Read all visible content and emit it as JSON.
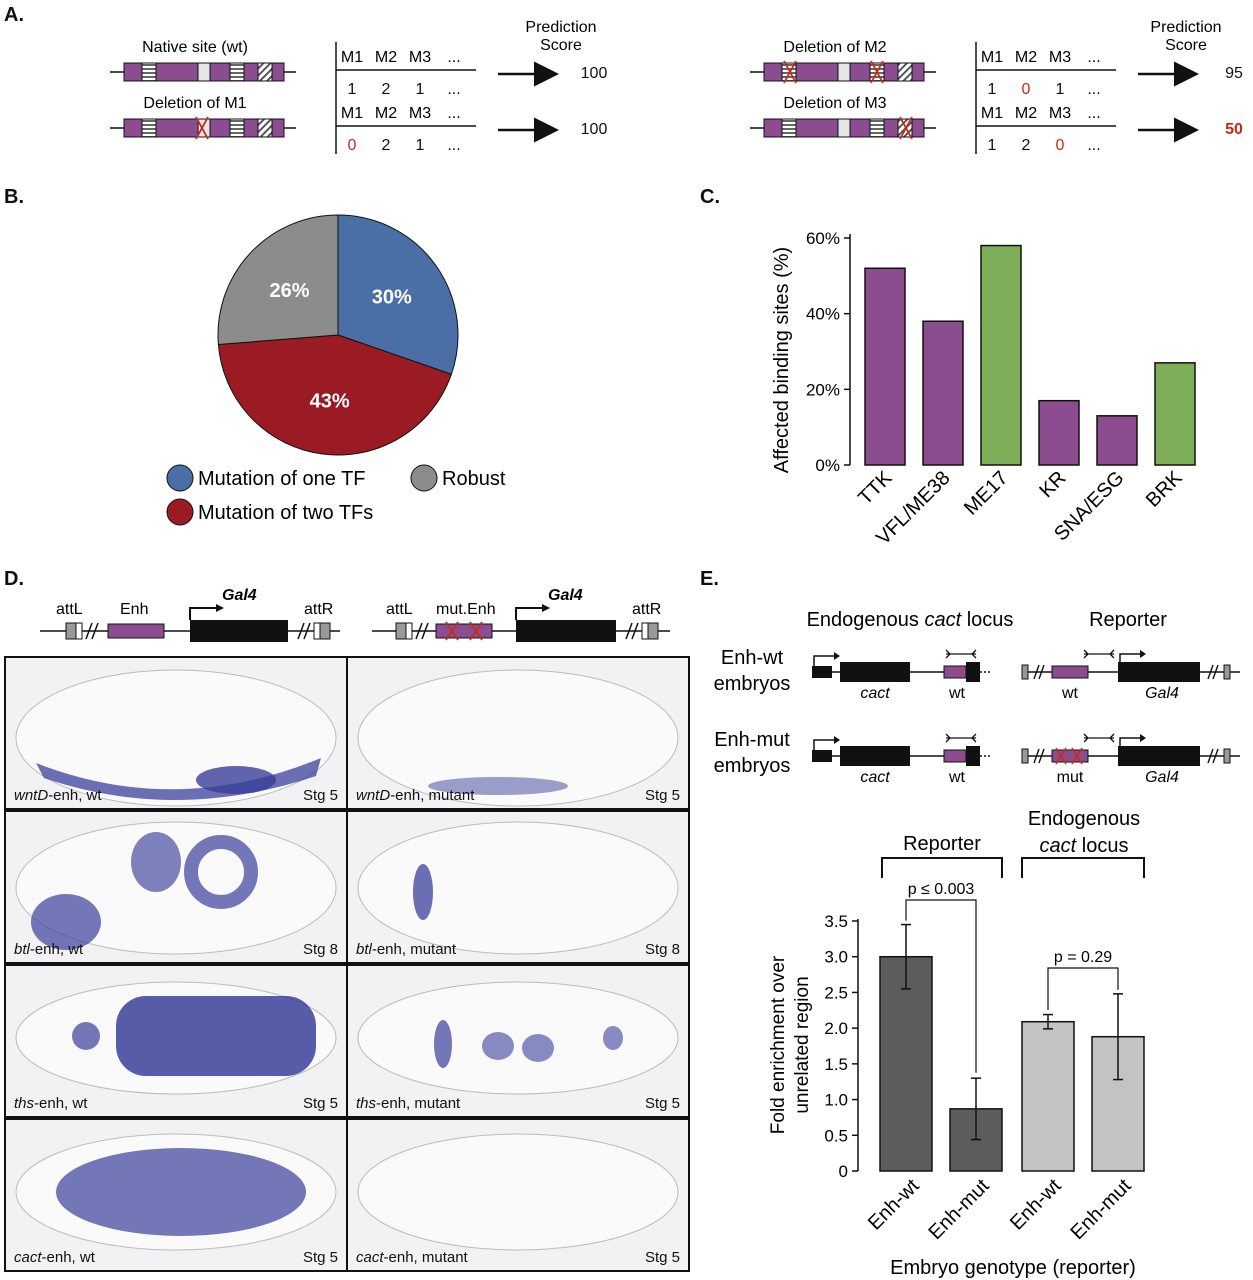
{
  "colors": {
    "purple": "#8b4d8f",
    "green": "#7fae59",
    "blue": "#4a6ea6",
    "red": "#9a1b24",
    "gray": "#8c8c8c",
    "dark_gray": "#5c5c5c",
    "light_gray": "#c3c3c3",
    "red_text": "#c62a16",
    "embryo_stain": "#3a3f9a"
  },
  "panelA": {
    "letter": "A.",
    "score_header_line1": "Prediction",
    "score_header_line2": "Score",
    "table_headers": [
      "M1",
      "M2",
      "M3",
      "..."
    ],
    "rows": [
      {
        "label": "Native site (wt)",
        "values": [
          "1",
          "2",
          "1",
          "..."
        ],
        "score": "100"
      },
      {
        "label": "Deletion of M1",
        "values": [
          "0",
          "2",
          "1",
          "..."
        ],
        "score": "100"
      },
      {
        "label": "Deletion of M2",
        "values": [
          "1",
          "0",
          "1",
          "..."
        ],
        "score": "95"
      },
      {
        "label": "Deletion of M3",
        "values": [
          "1",
          "2",
          "0",
          "..."
        ],
        "score": "50"
      }
    ]
  },
  "panelB": {
    "letter": "B.",
    "legend": {
      "one_tf": "Mutation of one TF",
      "robust": "Robust",
      "two_tfs": "Mutation of two TFs"
    }
  },
  "panelC": {
    "letter": "C."
  },
  "panelD": {
    "letter": "D.",
    "construct_wt": {
      "attL": "attL",
      "enh": "Enh",
      "gal4": "Gal4",
      "attR": "attR"
    },
    "construct_mut": {
      "attL": "attL",
      "enh": "mut.Enh",
      "gal4": "Gal4",
      "attR": "attR"
    },
    "tiles": [
      {
        "gene": "wntD",
        "suffix": "-enh, wt",
        "stage": "Stg 5"
      },
      {
        "gene": "wntD",
        "suffix": "-enh, mutant",
        "stage": "Stg 5"
      },
      {
        "gene": "btl",
        "suffix": "-enh, wt",
        "stage": "Stg 8"
      },
      {
        "gene": "btl",
        "suffix": "-enh, mutant",
        "stage": "Stg 8"
      },
      {
        "gene": "ths",
        "suffix": "-enh, wt",
        "stage": "Stg 5"
      },
      {
        "gene": "ths",
        "suffix": "-enh, mutant",
        "stage": "Stg 5"
      },
      {
        "gene": "cact",
        "suffix": "-enh, wt",
        "stage": "Stg 5"
      },
      {
        "gene": "cact",
        "suffix": "-enh, mutant",
        "stage": "Stg 5"
      }
    ]
  },
  "panelE": {
    "letter": "E.",
    "header_endogenous_prefix": "Endogenous",
    "header_endogenous_gene": "cact",
    "header_endogenous_suffix": "locus",
    "header_reporter": "Reporter",
    "row1_label_line1": "Enh-wt",
    "row1_label_line2": "embryos",
    "row2_label_line1": "Enh-mut",
    "row2_label_line2": "embryos",
    "locus_gene": "cact",
    "locus_wt": "wt",
    "reporter_wt": "wt",
    "reporter_mut": "mut",
    "reporter_gal4": "Gal4",
    "bracket_reporter": "Reporter",
    "bracket_endogenous_line1": "Endogenous",
    "bracket_endogenous_line2_gene": "cact",
    "bracket_endogenous_line2_rest": "locus",
    "p1": "p ≤ 0.003",
    "p2": "p = 0.29"
  },
  "chart_data": [
    {
      "type": "pie",
      "labels": [
        "Mutation of one TF",
        "Mutation of two TFs",
        "Robust"
      ],
      "values": [
        30,
        43,
        26
      ],
      "value_labels": [
        "30%",
        "43%",
        "26%"
      ],
      "colors": [
        "#4a6ea6",
        "#9a1b24",
        "#8c8c8c"
      ]
    },
    {
      "type": "bar",
      "categories": [
        "TTK",
        "VFL/ME38",
        "ME17",
        "KR",
        "SNA/ESG",
        "BRK"
      ],
      "values": [
        52,
        38,
        58,
        17,
        13,
        27
      ],
      "bar_colors": [
        "#8b4d8f",
        "#8b4d8f",
        "#7fae59",
        "#8b4d8f",
        "#8b4d8f",
        "#7fae59"
      ],
      "ylabel": "Affected binding sites (%)",
      "yticks": [
        "0%",
        "20%",
        "40%",
        "60%"
      ],
      "ylim": [
        0,
        60
      ]
    },
    {
      "type": "bar",
      "categories": [
        "Enh-wt",
        "Enh-mut",
        "Enh-wt",
        "Enh-mut"
      ],
      "values": [
        3.0,
        0.87,
        2.09,
        1.88
      ],
      "errors": [
        0.45,
        0.43,
        0.1,
        0.6
      ],
      "bar_colors": [
        "#5c5c5c",
        "#5c5c5c",
        "#c3c3c3",
        "#c3c3c3"
      ],
      "xlabel": "Embryo genotype (reporter)",
      "ylabel_line1": "Fold enrichment over",
      "ylabel_line2": "unrelated region",
      "yticks": [
        "0",
        "0.5",
        "1.0",
        "1.5",
        "2.0",
        "2.5",
        "3.0",
        "3.5"
      ],
      "ylim": [
        0,
        3.5
      ]
    }
  ]
}
